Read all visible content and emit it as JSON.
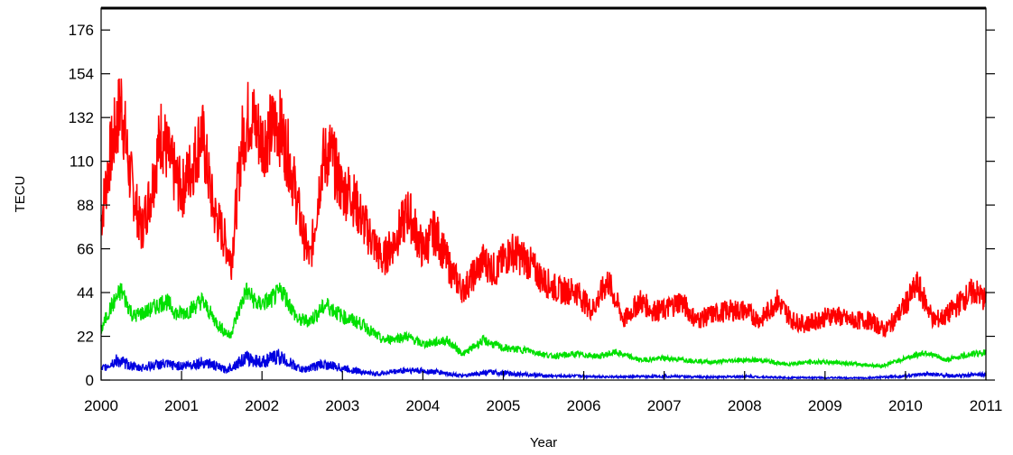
{
  "chart_data": {
    "type": "line",
    "xlabel": "Year",
    "ylabel": "TECU",
    "xlim": [
      2000,
      2011
    ],
    "ylim": [
      0,
      187
    ],
    "x_ticks": [
      2000,
      2001,
      2002,
      2003,
      2004,
      2005,
      2006,
      2007,
      2008,
      2009,
      2010,
      2011
    ],
    "y_ticks": [
      0,
      22,
      44,
      66,
      88,
      110,
      132,
      154,
      176
    ],
    "grid": false,
    "legend": "none",
    "series": [
      {
        "color": "#ff0000",
        "x": [
          2000.0,
          2000.1,
          2000.25,
          2000.35,
          2000.5,
          2000.62,
          2000.75,
          2000.85,
          2001.0,
          2001.15,
          2001.25,
          2001.4,
          2001.5,
          2001.62,
          2001.75,
          2001.85,
          2002.0,
          2002.1,
          2002.2,
          2002.35,
          2002.5,
          2002.6,
          2002.75,
          2002.85,
          2003.0,
          2003.1,
          2003.25,
          2003.5,
          2003.65,
          2003.82,
          2004.0,
          2004.15,
          2004.35,
          2004.5,
          2004.75,
          2004.9,
          2005.1,
          2005.3,
          2005.5,
          2005.7,
          2005.9,
          2006.1,
          2006.3,
          2006.5,
          2006.7,
          2006.85,
          2007.0,
          2007.2,
          2007.4,
          2007.6,
          2007.8,
          2008.0,
          2008.2,
          2008.4,
          2008.6,
          2008.75,
          2008.9,
          2009.1,
          2009.3,
          2009.55,
          2009.75,
          2009.95,
          2010.15,
          2010.35,
          2010.5,
          2010.7,
          2010.85,
          2011.0
        ],
        "y": [
          80,
          110,
          140,
          105,
          75,
          95,
          125,
          110,
          95,
          110,
          125,
          85,
          75,
          60,
          120,
          135,
          120,
          125,
          130,
          110,
          75,
          60,
          110,
          115,
          95,
          95,
          80,
          60,
          70,
          85,
          65,
          75,
          55,
          45,
          60,
          55,
          65,
          60,
          50,
          45,
          45,
          35,
          50,
          30,
          40,
          35,
          35,
          40,
          30,
          33,
          35,
          35,
          30,
          40,
          30,
          28,
          30,
          33,
          30,
          30,
          25,
          35,
          48,
          30,
          32,
          40,
          45,
          40
        ]
      },
      {
        "color": "#00e000",
        "x": [
          2000.0,
          2000.1,
          2000.25,
          2000.4,
          2000.6,
          2000.8,
          2000.95,
          2001.1,
          2001.25,
          2001.45,
          2001.6,
          2001.8,
          2001.95,
          2002.1,
          2002.25,
          2002.45,
          2002.6,
          2002.8,
          2003.0,
          2003.25,
          2003.5,
          2003.8,
          2004.0,
          2004.3,
          2004.5,
          2004.75,
          2005.0,
          2005.3,
          2005.6,
          2005.9,
          2006.2,
          2006.4,
          2006.7,
          2007.0,
          2007.3,
          2007.6,
          2007.9,
          2008.2,
          2008.5,
          2008.8,
          2009.1,
          2009.4,
          2009.7,
          2010.0,
          2010.25,
          2010.5,
          2010.8,
          2011.0
        ],
        "y": [
          25,
          35,
          45,
          32,
          35,
          40,
          33,
          35,
          40,
          28,
          22,
          45,
          38,
          40,
          45,
          30,
          30,
          38,
          32,
          28,
          20,
          22,
          18,
          20,
          13,
          20,
          16,
          15,
          12,
          13,
          12,
          14,
          10,
          11,
          10,
          9,
          10,
          10,
          8,
          9,
          9,
          8,
          7,
          11,
          14,
          10,
          13,
          14
        ]
      },
      {
        "color": "#0000e0",
        "x": [
          2000.0,
          2000.2,
          2000.45,
          2000.75,
          2001.0,
          2001.3,
          2001.55,
          2001.8,
          2002.0,
          2002.2,
          2002.5,
          2002.75,
          2003.0,
          2003.4,
          2003.8,
          2004.2,
          2004.5,
          2004.8,
          2005.2,
          2005.6,
          2006.0,
          2006.5,
          2007.0,
          2007.5,
          2008.0,
          2008.5,
          2009.0,
          2009.5,
          2010.0,
          2010.3,
          2010.6,
          2011.0
        ],
        "y": [
          5,
          10,
          6,
          8,
          7,
          9,
          5,
          11,
          9,
          12,
          5,
          8,
          6,
          3,
          5,
          4,
          2,
          4,
          3,
          2,
          2,
          1.5,
          2,
          1.5,
          1.8,
          1.2,
          1.2,
          1,
          2,
          3,
          2,
          3
        ]
      }
    ]
  }
}
